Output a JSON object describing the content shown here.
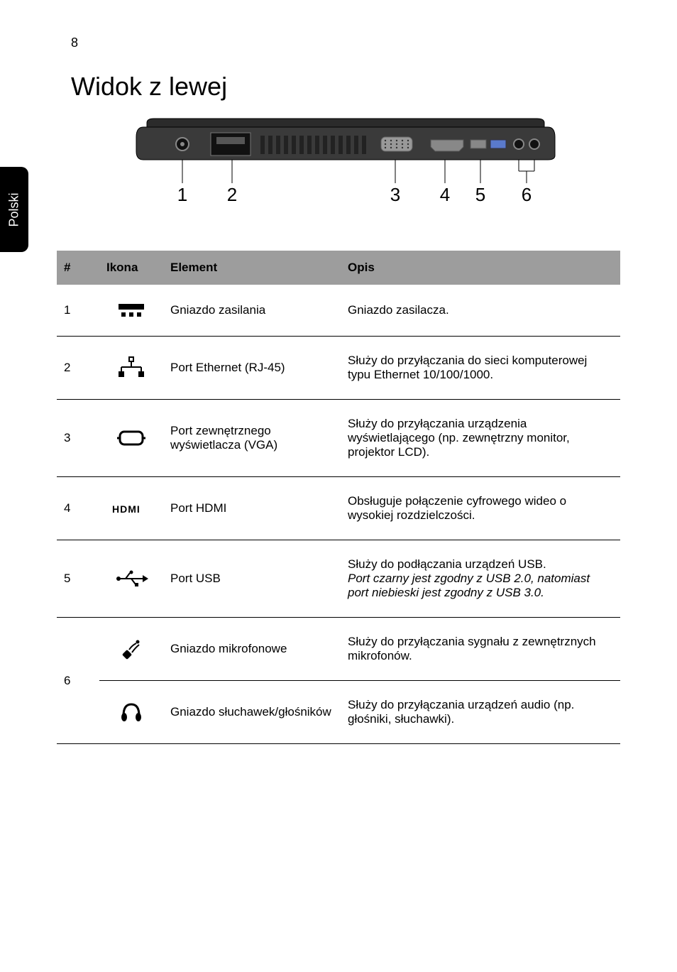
{
  "page_number": "8",
  "side_tab": "Polski",
  "title": "Widok z lewej",
  "diagram": {
    "callouts": [
      "1",
      "2",
      "3",
      "4",
      "5",
      "6"
    ],
    "callout_positions_x": [
      100,
      170,
      400,
      470,
      520,
      575
    ],
    "body_fill": "#3a3a3a",
    "body_stroke": "#000000",
    "lid_fill": "#2b2b2b",
    "callout_font_size": 26
  },
  "colors": {
    "page_bg": "#ffffff",
    "text": "#000000",
    "tab_bg": "#000000",
    "tab_text": "#ffffff",
    "header_row_bg": "#9d9d9d",
    "header_row_text": "#000000",
    "rule": "#000000"
  },
  "typography": {
    "title_font_size_pt": 26,
    "body_font_size_pt": 12,
    "header_font_weight": "bold"
  },
  "table": {
    "headers": {
      "num": "#",
      "icon": "Ikona",
      "element": "Element",
      "desc": "Opis"
    },
    "rows": [
      {
        "num": "1",
        "icon_name": "power-jack-icon",
        "element": "Gniazdo zasilania",
        "desc": "Gniazdo zasilacza."
      },
      {
        "num": "2",
        "icon_name": "ethernet-icon",
        "element": "Port Ethernet (RJ-45)",
        "desc": "Służy do przyłączania do sieci komputerowej typu Ethernet 10/100/1000."
      },
      {
        "num": "3",
        "icon_name": "vga-icon",
        "element": "Port zewnętrznego wyświetlacza (VGA)",
        "desc": "Służy do przyłączania urządzenia wyświetlającego (np. zewnętrzny monitor, projektor LCD)."
      },
      {
        "num": "4",
        "icon_name": "hdmi-icon",
        "element": "Port HDMI",
        "desc": "Obsługuje połączenie cyfrowego wideo o wysokiej rozdzielczości."
      },
      {
        "num": "5",
        "icon_name": "usb-icon",
        "element": "Port USB",
        "desc_plain": "Służy do podłączania urządzeń USB.",
        "desc_italic": "Port czarny jest zgodny z USB 2.0, natomiast port niebieski jest zgodny z USB 3.0."
      }
    ],
    "row6": {
      "num": "6",
      "sub": [
        {
          "icon_name": "mic-icon",
          "element": "Gniazdo mikrofonowe",
          "desc": "Służy do przyłączania sygnału z zewnętrznych mikrofonów."
        },
        {
          "icon_name": "headphone-icon",
          "element": "Gniazdo słuchawek/głośników",
          "desc": "Służy do przyłączania urządzeń audio (np. głośniki, słuchawki)."
        }
      ]
    }
  }
}
